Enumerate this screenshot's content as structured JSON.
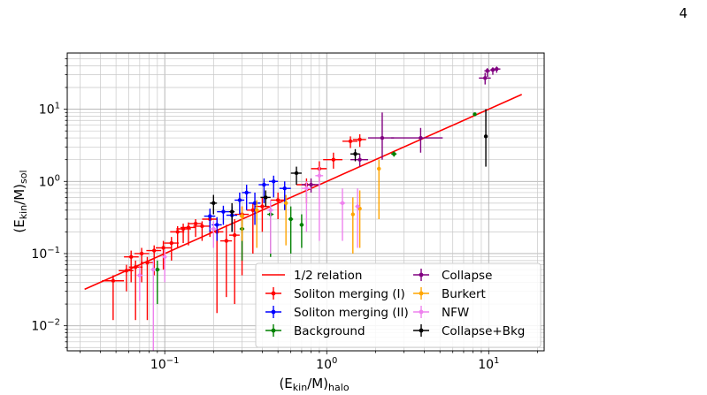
{
  "page_number": "4",
  "chart_data": {
    "type": "scatter",
    "title": "",
    "xscale": "log",
    "yscale": "log",
    "xlim": [
      0.025,
      22
    ],
    "ylim": [
      0.0045,
      60
    ],
    "grid": "on (major and minor)",
    "legend_placement": "lower-right",
    "xlabel": {
      "base": "(E",
      "sub1": "kin",
      "mid": "/M)",
      "sub2": "halo"
    },
    "ylabel": {
      "base": "(E",
      "sub1": "kin",
      "mid": "/M)",
      "sub2": "sol"
    },
    "xticks": [
      {
        "value": 0.1,
        "base": "10",
        "exp": "−1"
      },
      {
        "value": 1,
        "base": "10",
        "exp": "0"
      },
      {
        "value": 10,
        "base": "10",
        "exp": "1"
      }
    ],
    "yticks": [
      {
        "value": 0.01,
        "base": "10",
        "exp": "−2"
      },
      {
        "value": 0.1,
        "base": "10",
        "exp": "−1"
      },
      {
        "value": 1,
        "base": "10",
        "exp": "0"
      },
      {
        "value": 10,
        "base": "10",
        "exp": "1"
      }
    ],
    "relation_line": {
      "name": "1/2 relation",
      "color": "#ff0000",
      "x": [
        0.032,
        16
      ],
      "y": [
        0.032,
        16
      ]
    },
    "series": [
      {
        "name": "Soliton merging (I)",
        "color": "#ff0000",
        "points": [
          {
            "x": 0.048,
            "y": 0.042,
            "xlo": 0.041,
            "xhi": 0.056,
            "ylo": 0.012,
            "yhi": 0.05
          },
          {
            "x": 0.058,
            "y": 0.058,
            "xlo": 0.052,
            "xhi": 0.064,
            "ylo": 0.03,
            "yhi": 0.07
          },
          {
            "x": 0.062,
            "y": 0.09,
            "xlo": 0.056,
            "xhi": 0.069,
            "ylo": 0.04,
            "yhi": 0.11
          },
          {
            "x": 0.066,
            "y": 0.065,
            "xlo": 0.06,
            "xhi": 0.073,
            "ylo": 0.012,
            "yhi": 0.08
          },
          {
            "x": 0.072,
            "y": 0.1,
            "xlo": 0.065,
            "xhi": 0.08,
            "ylo": 0.04,
            "yhi": 0.12
          },
          {
            "x": 0.078,
            "y": 0.075,
            "xlo": 0.071,
            "xhi": 0.086,
            "ylo": 0.012,
            "yhi": 0.09
          },
          {
            "x": 0.086,
            "y": 0.11,
            "xlo": 0.077,
            "xhi": 0.095,
            "ylo": 0.05,
            "yhi": 0.13
          },
          {
            "x": 0.098,
            "y": 0.12,
            "xlo": 0.088,
            "xhi": 0.11,
            "ylo": 0.06,
            "yhi": 0.15
          },
          {
            "x": 0.11,
            "y": 0.14,
            "xlo": 0.099,
            "xhi": 0.122,
            "ylo": 0.08,
            "yhi": 0.17
          },
          {
            "x": 0.12,
            "y": 0.2,
            "xlo": 0.108,
            "xhi": 0.132,
            "ylo": 0.12,
            "yhi": 0.24
          },
          {
            "x": 0.13,
            "y": 0.22,
            "xlo": 0.118,
            "xhi": 0.145,
            "ylo": 0.14,
            "yhi": 0.26
          },
          {
            "x": 0.14,
            "y": 0.23,
            "xlo": 0.125,
            "xhi": 0.155,
            "ylo": 0.13,
            "yhi": 0.27
          },
          {
            "x": 0.155,
            "y": 0.26,
            "xlo": 0.14,
            "xhi": 0.17,
            "ylo": 0.17,
            "yhi": 0.3
          },
          {
            "x": 0.17,
            "y": 0.24,
            "xlo": 0.15,
            "xhi": 0.19,
            "ylo": 0.15,
            "yhi": 0.28
          },
          {
            "x": 0.19,
            "y": 0.3,
            "xlo": 0.17,
            "xhi": 0.21,
            "ylo": 0.17,
            "yhi": 0.36
          },
          {
            "x": 0.21,
            "y": 0.2,
            "xlo": 0.19,
            "xhi": 0.23,
            "ylo": 0.015,
            "yhi": 0.3
          },
          {
            "x": 0.24,
            "y": 0.15,
            "xlo": 0.22,
            "xhi": 0.26,
            "ylo": 0.025,
            "yhi": 0.25
          },
          {
            "x": 0.27,
            "y": 0.18,
            "xlo": 0.25,
            "xhi": 0.29,
            "ylo": 0.02,
            "yhi": 0.3
          },
          {
            "x": 0.3,
            "y": 0.35,
            "xlo": 0.27,
            "xhi": 0.33,
            "ylo": 0.05,
            "yhi": 0.45
          },
          {
            "x": 0.35,
            "y": 0.4,
            "xlo": 0.32,
            "xhi": 0.38,
            "ylo": 0.1,
            "yhi": 0.5
          },
          {
            "x": 0.4,
            "y": 0.45,
            "xlo": 0.36,
            "xhi": 0.44,
            "ylo": 0.2,
            "yhi": 0.6
          },
          {
            "x": 0.5,
            "y": 0.55,
            "xlo": 0.45,
            "xhi": 0.55,
            "ylo": 0.3,
            "yhi": 0.7
          },
          {
            "x": 0.75,
            "y": 0.9,
            "xlo": 0.65,
            "xhi": 0.85,
            "ylo": 0.5,
            "yhi": 1.1
          },
          {
            "x": 0.9,
            "y": 1.5,
            "xlo": 0.8,
            "xhi": 1.0,
            "ylo": 1.0,
            "yhi": 1.9
          },
          {
            "x": 1.1,
            "y": 2.0,
            "xlo": 0.95,
            "xhi": 1.25,
            "ylo": 1.5,
            "yhi": 2.5
          },
          {
            "x": 1.4,
            "y": 3.6,
            "xlo": 1.25,
            "xhi": 1.55,
            "ylo": 2.9,
            "yhi": 4.2
          },
          {
            "x": 1.6,
            "y": 3.8,
            "xlo": 1.45,
            "xhi": 1.75,
            "ylo": 3.0,
            "yhi": 4.5
          }
        ]
      },
      {
        "name": "Soliton merging (II)",
        "color": "#0000ff",
        "points": [
          {
            "x": 0.19,
            "y": 0.33,
            "xlo": 0.175,
            "xhi": 0.205,
            "ylo": 0.2,
            "yhi": 0.42
          },
          {
            "x": 0.21,
            "y": 0.25,
            "xlo": 0.195,
            "xhi": 0.225,
            "ylo": 0.15,
            "yhi": 0.32
          },
          {
            "x": 0.23,
            "y": 0.38,
            "xlo": 0.21,
            "xhi": 0.25,
            "ylo": 0.25,
            "yhi": 0.46
          },
          {
            "x": 0.26,
            "y": 0.34,
            "xlo": 0.24,
            "xhi": 0.28,
            "ylo": 0.2,
            "yhi": 0.45
          },
          {
            "x": 0.29,
            "y": 0.55,
            "xlo": 0.27,
            "xhi": 0.31,
            "ylo": 0.35,
            "yhi": 0.7
          },
          {
            "x": 0.32,
            "y": 0.7,
            "xlo": 0.3,
            "xhi": 0.34,
            "ylo": 0.4,
            "yhi": 0.9
          },
          {
            "x": 0.36,
            "y": 0.5,
            "xlo": 0.33,
            "xhi": 0.39,
            "ylo": 0.25,
            "yhi": 0.7
          },
          {
            "x": 0.41,
            "y": 0.9,
            "xlo": 0.38,
            "xhi": 0.44,
            "ylo": 0.5,
            "yhi": 1.1
          },
          {
            "x": 0.47,
            "y": 1.0,
            "xlo": 0.44,
            "xhi": 0.5,
            "ylo": 0.6,
            "yhi": 1.2
          },
          {
            "x": 0.55,
            "y": 0.8,
            "xlo": 0.51,
            "xhi": 0.6,
            "ylo": 0.4,
            "yhi": 1.0
          }
        ]
      },
      {
        "name": "Background",
        "color": "#008000",
        "points": [
          {
            "x": 0.09,
            "y": 0.06,
            "xlo": 0.087,
            "xhi": 0.093,
            "ylo": 0.02,
            "yhi": 0.08
          },
          {
            "x": 0.3,
            "y": 0.22,
            "xlo": 0.29,
            "xhi": 0.31,
            "ylo": 0.08,
            "yhi": 0.3
          },
          {
            "x": 0.45,
            "y": 0.35,
            "xlo": 0.43,
            "xhi": 0.47,
            "ylo": 0.09,
            "yhi": 0.45
          },
          {
            "x": 0.6,
            "y": 0.3,
            "xlo": 0.58,
            "xhi": 0.62,
            "ylo": 0.1,
            "yhi": 0.45
          },
          {
            "x": 0.7,
            "y": 0.25,
            "xlo": 0.68,
            "xhi": 0.72,
            "ylo": 0.12,
            "yhi": 0.35
          },
          {
            "x": 2.6,
            "y": 2.4,
            "xlo": 2.5,
            "xhi": 2.7,
            "ylo": 2.2,
            "yhi": 2.6
          },
          {
            "x": 8.2,
            "y": 8.5,
            "xlo": 8.0,
            "xhi": 8.4,
            "ylo": 8.2,
            "yhi": 8.8
          }
        ]
      },
      {
        "name": "Collapse",
        "color": "#800080",
        "points": [
          {
            "x": 0.8,
            "y": 0.9,
            "xlo": 0.7,
            "xhi": 0.9,
            "ylo": 0.7,
            "yhi": 1.1
          },
          {
            "x": 1.6,
            "y": 2.0,
            "xlo": 1.4,
            "xhi": 1.8,
            "ylo": 1.6,
            "yhi": 2.4
          },
          {
            "x": 2.2,
            "y": 4.0,
            "xlo": 1.8,
            "xhi": 2.6,
            "ylo": 2.0,
            "yhi": 9.0
          },
          {
            "x": 3.8,
            "y": 4.0,
            "xlo": 2.5,
            "xhi": 5.2,
            "ylo": 2.5,
            "yhi": 5.5
          },
          {
            "x": 9.5,
            "y": 27,
            "xlo": 8.7,
            "xhi": 10.3,
            "ylo": 22,
            "yhi": 32
          },
          {
            "x": 9.8,
            "y": 34,
            "xlo": 9.4,
            "xhi": 10.2,
            "ylo": 28,
            "yhi": 37
          },
          {
            "x": 10.6,
            "y": 35,
            "xlo": 10.2,
            "xhi": 11.0,
            "ylo": 30,
            "yhi": 38
          },
          {
            "x": 11.2,
            "y": 36,
            "xlo": 10.6,
            "xhi": 11.8,
            "ylo": 32,
            "yhi": 39
          }
        ]
      },
      {
        "name": "Burkert",
        "color": "#ffa500",
        "points": [
          {
            "x": 0.3,
            "y": 0.33,
            "xlo": 0.29,
            "xhi": 0.31,
            "ylo": 0.15,
            "yhi": 0.45
          },
          {
            "x": 0.37,
            "y": 0.4,
            "xlo": 0.36,
            "xhi": 0.38,
            "ylo": 0.12,
            "yhi": 0.55
          },
          {
            "x": 0.56,
            "y": 0.5,
            "xlo": 0.55,
            "xhi": 0.57,
            "ylo": 0.13,
            "yhi": 0.65
          },
          {
            "x": 1.45,
            "y": 0.35,
            "xlo": 1.42,
            "xhi": 1.48,
            "ylo": 0.1,
            "yhi": 0.6
          },
          {
            "x": 1.6,
            "y": 0.42,
            "xlo": 1.57,
            "xhi": 1.63,
            "ylo": 0.12,
            "yhi": 0.75
          },
          {
            "x": 2.1,
            "y": 1.5,
            "xlo": 2.05,
            "xhi": 2.15,
            "ylo": 0.3,
            "yhi": 2.0
          }
        ]
      },
      {
        "name": "NFW",
        "color": "#ee82ee",
        "points": [
          {
            "x": 0.07,
            "y": 0.05,
            "xlo": 0.067,
            "xhi": 0.073,
            "ylo": 0.022,
            "yhi": 0.065
          },
          {
            "x": 0.085,
            "y": 0.06,
            "xlo": 0.082,
            "xhi": 0.088,
            "ylo": 0.003,
            "yhi": 0.08
          },
          {
            "x": 0.1,
            "y": 0.09,
            "xlo": 0.097,
            "xhi": 0.103,
            "ylo": 0.04,
            "yhi": 0.11
          },
          {
            "x": 0.2,
            "y": 0.22,
            "xlo": 0.19,
            "xhi": 0.21,
            "ylo": 0.12,
            "yhi": 0.28
          },
          {
            "x": 0.45,
            "y": 0.4,
            "xlo": 0.43,
            "xhi": 0.47,
            "ylo": 0.1,
            "yhi": 0.55
          },
          {
            "x": 0.75,
            "y": 0.8,
            "xlo": 0.7,
            "xhi": 0.8,
            "ylo": 0.2,
            "yhi": 1.0
          },
          {
            "x": 0.9,
            "y": 1.2,
            "xlo": 0.85,
            "xhi": 0.95,
            "ylo": 0.15,
            "yhi": 1.6
          },
          {
            "x": 1.25,
            "y": 0.5,
            "xlo": 1.2,
            "xhi": 1.3,
            "ylo": 0.15,
            "yhi": 0.8
          },
          {
            "x": 1.55,
            "y": 0.45,
            "xlo": 1.5,
            "xhi": 1.6,
            "ylo": 0.12,
            "yhi": 0.8
          }
        ]
      },
      {
        "name": "Collapse+Bkg",
        "color": "#000000",
        "points": [
          {
            "x": 0.2,
            "y": 0.5,
            "xlo": 0.19,
            "xhi": 0.21,
            "ylo": 0.35,
            "yhi": 0.65
          },
          {
            "x": 0.26,
            "y": 0.38,
            "xlo": 0.25,
            "xhi": 0.27,
            "ylo": 0.2,
            "yhi": 0.5
          },
          {
            "x": 0.42,
            "y": 0.6,
            "xlo": 0.39,
            "xhi": 0.45,
            "ylo": 0.45,
            "yhi": 0.75
          },
          {
            "x": 0.65,
            "y": 1.3,
            "xlo": 0.6,
            "xhi": 0.7,
            "ylo": 0.9,
            "yhi": 1.6
          },
          {
            "x": 1.5,
            "y": 2.4,
            "xlo": 1.4,
            "xhi": 1.6,
            "ylo": 1.9,
            "yhi": 2.8
          },
          {
            "x": 9.6,
            "y": 4.2,
            "xlo": 9.5,
            "xhi": 9.7,
            "ylo": 1.6,
            "yhi": 10
          }
        ]
      }
    ]
  }
}
